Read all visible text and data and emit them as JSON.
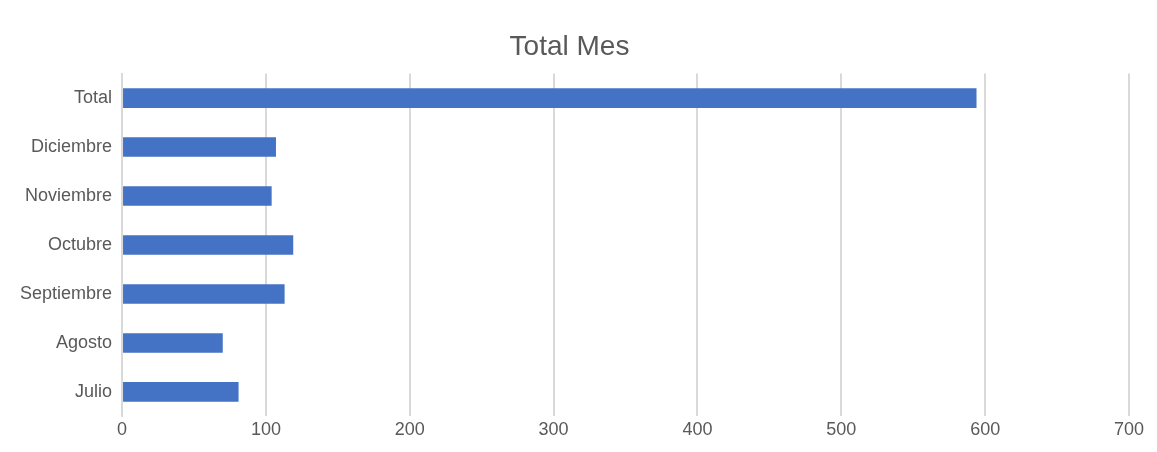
{
  "chart_data": {
    "type": "bar",
    "orientation": "horizontal",
    "title": "Total Mes",
    "categories": [
      "Total",
      "Diciembre",
      "Noviembre",
      "Octubre",
      "Septiembre",
      "Agosto",
      "Julio"
    ],
    "values": [
      594,
      107,
      104,
      119,
      113,
      70,
      81
    ],
    "color": "#4472c4",
    "xlim": [
      0,
      700
    ],
    "xticks": [
      0,
      100,
      200,
      300,
      400,
      500,
      600,
      700
    ],
    "grid": "x",
    "legend": false
  }
}
